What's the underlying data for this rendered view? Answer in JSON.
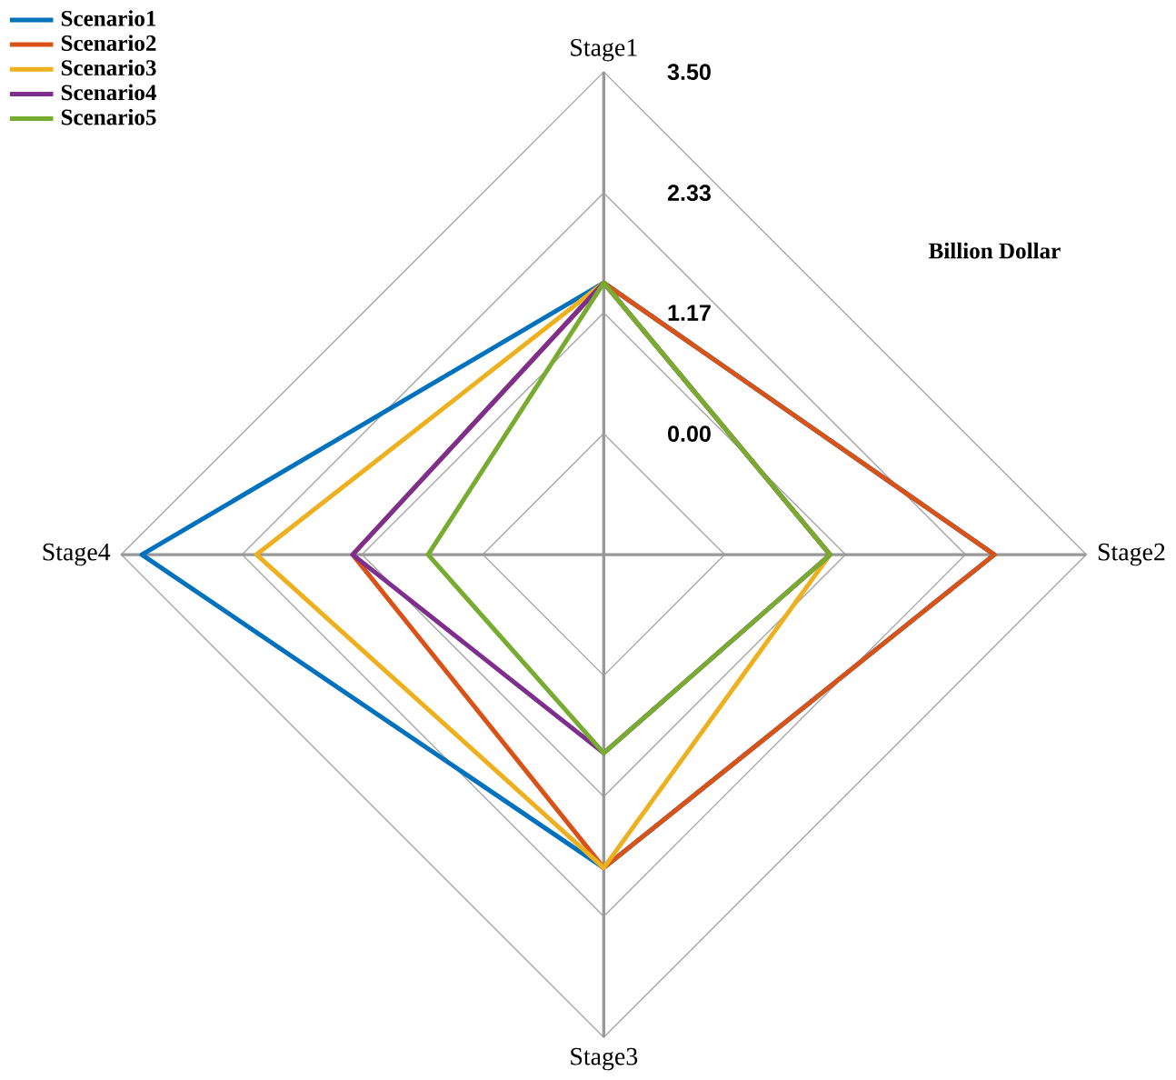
{
  "chart_data": {
    "type": "radar",
    "categories": [
      "Stage1",
      "Stage2",
      "Stage3",
      "Stage4"
    ],
    "ylabel": "Billion Dollar",
    "ylim": [
      -1.17,
      3.5
    ],
    "yticks": [
      {
        "value": 0,
        "label": "0.00"
      },
      {
        "value": 1.17,
        "label": "1.17"
      },
      {
        "value": 2.33,
        "label": "2.33"
      },
      {
        "value": 3.5,
        "label": "3.50"
      }
    ],
    "grid": true,
    "legend": "top left",
    "series": [
      {
        "name": "Scenario1",
        "color": "#0072bd",
        "values": [
          1.46,
          2.61,
          1.86,
          3.3
        ]
      },
      {
        "name": "Scenario2",
        "color": "#d95319",
        "values": [
          1.46,
          2.61,
          1.86,
          1.26
        ]
      },
      {
        "name": "Scenario3",
        "color": "#edb120",
        "values": [
          1.46,
          1.02,
          1.86,
          2.19
        ]
      },
      {
        "name": "Scenario4",
        "color": "#7e2f8e",
        "values": [
          1.46,
          1.02,
          0.75,
          1.26
        ]
      },
      {
        "name": "Scenario5",
        "color": "#77ac30",
        "values": [
          1.46,
          1.02,
          0.75,
          0.53
        ]
      }
    ]
  }
}
